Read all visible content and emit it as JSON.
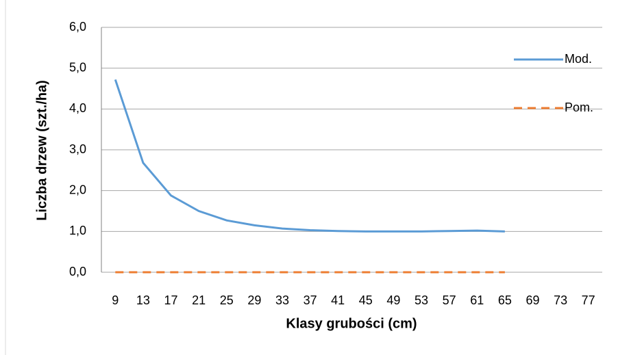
{
  "chart_data": {
    "type": "line",
    "y_label": "Liczba drzew (szt./ha)",
    "x_label": "Klasy grubości (cm)",
    "categories": [
      "9",
      "13",
      "17",
      "21",
      "25",
      "29",
      "33",
      "37",
      "41",
      "45",
      "49",
      "53",
      "57",
      "61",
      "65",
      "69",
      "73",
      "77"
    ],
    "series": [
      {
        "name": "Mod.",
        "color": "#5b9bd5",
        "dash": false,
        "values": [
          4.72,
          2.68,
          1.88,
          1.5,
          1.27,
          1.15,
          1.07,
          1.03,
          1.01,
          1.0,
          1.0,
          1.0,
          1.01,
          1.02,
          1.0,
          null,
          null,
          null
        ]
      },
      {
        "name": "Pom.",
        "color": "#ed7d31",
        "dash": true,
        "values": [
          0,
          0,
          0,
          0,
          0,
          0,
          0,
          0,
          0,
          0,
          0,
          0,
          0,
          0,
          0,
          null,
          null,
          null
        ]
      }
    ],
    "ylim": [
      0,
      6
    ],
    "yticks": [
      {
        "value": 0,
        "label": "0,0"
      },
      {
        "value": 1,
        "label": "1,0"
      },
      {
        "value": 2,
        "label": "2,0"
      },
      {
        "value": 3,
        "label": "3,0"
      },
      {
        "value": 4,
        "label": "4,0"
      },
      {
        "value": 5,
        "label": "5,0"
      },
      {
        "value": 6,
        "label": "6,0"
      }
    ],
    "grid": true,
    "legend": "right"
  }
}
